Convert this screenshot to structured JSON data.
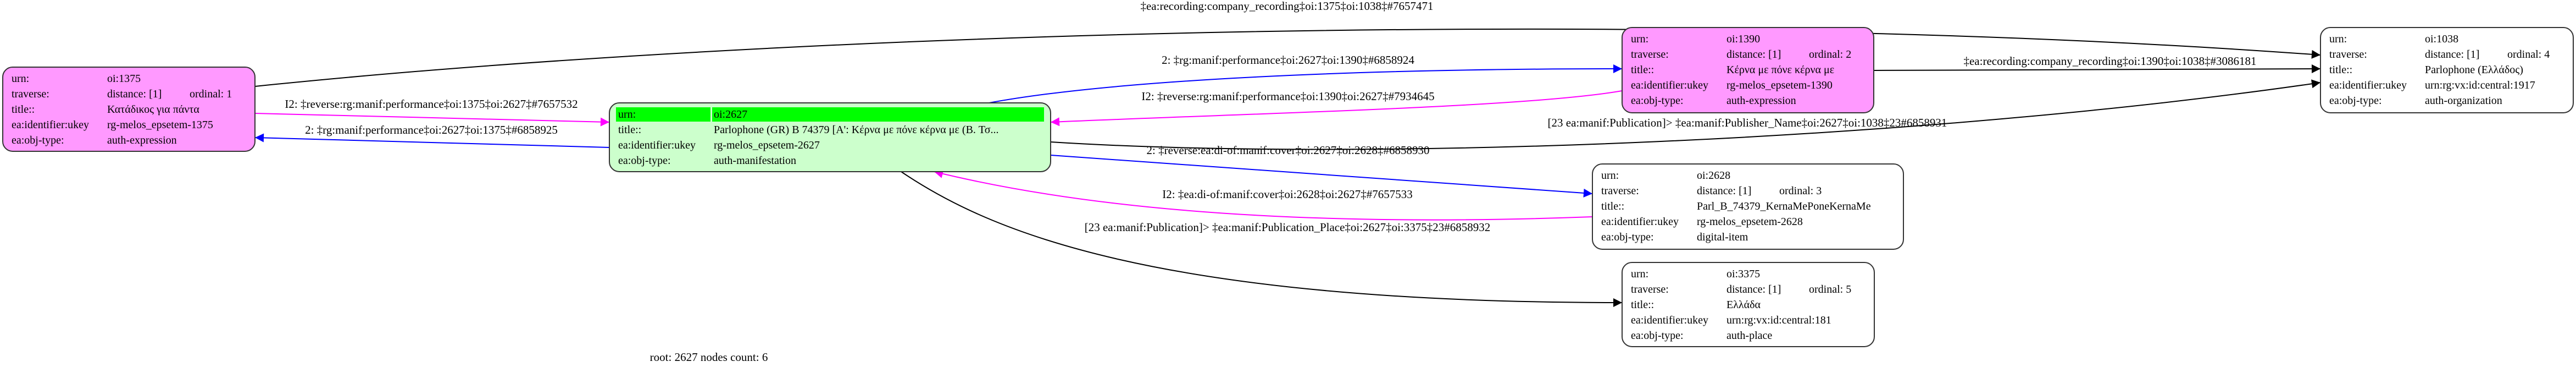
{
  "nodes": [
    {
      "id": "1375",
      "fill": "#ff99ff",
      "rows": [
        {
          "key": "urn:",
          "value": "oi:1375"
        },
        {
          "key": "traverse:",
          "value": "distance: [1]",
          "extra": "ordinal: 1"
        },
        {
          "key": "title::",
          "value": "Κατάδικος για πάντα"
        },
        {
          "key": "ea:identifier:ukey",
          "value": "rg-melos_epsetem-1375"
        },
        {
          "key": "ea:obj-type:",
          "value": "auth-expression"
        }
      ]
    },
    {
      "id": "2627",
      "fill": "#ccffcc",
      "header_fill": "#00ff00",
      "rows": [
        {
          "key": "urn:",
          "value": "oi:2627"
        },
        {
          "key": "title::",
          "value": "Parlophone (GR) B 74379 [A': Κέρνα με πόνε κέρνα με (B. Τσ..."
        },
        {
          "key": "ea:identifier:ukey",
          "value": "rg-melos_epsetem-2627"
        },
        {
          "key": "ea:obj-type:",
          "value": "auth-manifestation"
        }
      ]
    },
    {
      "id": "1390",
      "fill": "#ff99ff",
      "rows": [
        {
          "key": "urn:",
          "value": "oi:1390"
        },
        {
          "key": "traverse:",
          "value": "distance: [1]",
          "extra": "ordinal: 2"
        },
        {
          "key": "title::",
          "value": "Κέρνα με πόνε κέρνα με"
        },
        {
          "key": "ea:identifier:ukey",
          "value": "rg-melos_epsetem-1390"
        },
        {
          "key": "ea:obj-type:",
          "value": "auth-expression"
        }
      ]
    },
    {
      "id": "1038",
      "fill": "#ffffff",
      "rows": [
        {
          "key": "urn:",
          "value": "oi:1038"
        },
        {
          "key": "traverse:",
          "value": "distance: [1]",
          "extra": "ordinal: 4"
        },
        {
          "key": "title::",
          "value": "Parlophone (Ελλάδος)"
        },
        {
          "key": "ea:identifier:ukey",
          "value": "urn:rg:vx:id:central:1917"
        },
        {
          "key": "ea:obj-type:",
          "value": "auth-organization"
        }
      ]
    },
    {
      "id": "2628",
      "fill": "#ffffff",
      "rows": [
        {
          "key": "urn:",
          "value": "oi:2628"
        },
        {
          "key": "traverse:",
          "value": "distance: [1]",
          "extra": "ordinal: 3"
        },
        {
          "key": "title::",
          "value": "Parl_B_74379_KernaMePoneKernaMe"
        },
        {
          "key": "ea:identifier:ukey",
          "value": "rg-melos_epsetem-2628"
        },
        {
          "key": "ea:obj-type:",
          "value": "digital-item"
        }
      ]
    },
    {
      "id": "3375",
      "fill": "#ffffff",
      "rows": [
        {
          "key": "urn:",
          "value": "oi:3375"
        },
        {
          "key": "traverse:",
          "value": "distance: [1]",
          "extra": "ordinal: 5"
        },
        {
          "key": "title::",
          "value": "Ελλάδα"
        },
        {
          "key": "ea:identifier:ukey",
          "value": "urn:rg:vx:id:central:181"
        },
        {
          "key": "ea:obj-type:",
          "value": "auth-place"
        }
      ]
    }
  ],
  "edges": [
    {
      "from": "1375",
      "to": "1038",
      "color": "#000000",
      "label": "‡ea:recording:company_recording‡oi:1375‡oi:1038‡#7657471"
    },
    {
      "from": "1375",
      "to": "2627",
      "color": "#ff00ff",
      "label": "I2: ‡reverse:rg:manif:performance‡oi:1375‡oi:2627‡#7657532"
    },
    {
      "from": "2627",
      "to": "1375",
      "color": "#0000ff",
      "label": "2: ‡rg:manif:performance‡oi:2627‡oi:1375‡#6858925"
    },
    {
      "from": "2627",
      "to": "1390",
      "color": "#0000ff",
      "label": "2: ‡rg:manif:performance‡oi:2627‡oi:1390‡#6858924"
    },
    {
      "from": "1390",
      "to": "2627",
      "color": "#ff00ff",
      "label": "I2: ‡reverse:rg:manif:performance‡oi:1390‡oi:2627‡#7934645"
    },
    {
      "from": "1390",
      "to": "1038",
      "color": "#000000",
      "label": "‡ea:recording:company_recording‡oi:1390‡oi:1038‡#3086181"
    },
    {
      "from": "2627",
      "to": "1038",
      "color": "#000000",
      "label": "[23 ea:manif:Publication]> ‡ea:manif:Publisher_Name‡oi:2627‡oi:1038‡23#6858931"
    },
    {
      "from": "2627",
      "to": "2628",
      "color": "#0000ff",
      "label": "2: ‡reverse:ea:di-of:manif:cover‡oi:2627‡oi:2628‡#6858930"
    },
    {
      "from": "2628",
      "to": "2627",
      "color": "#ff00ff",
      "label": "I2: ‡ea:di-of:manif:cover‡oi:2628‡oi:2627‡#7657533"
    },
    {
      "from": "2627",
      "to": "3375",
      "color": "#000000",
      "label": "[23 ea:manif:Publication]> ‡ea:manif:Publication_Place‡oi:2627‡oi:3375‡23#6858932"
    }
  ],
  "footer": "root: 2627 nodes count: 6"
}
